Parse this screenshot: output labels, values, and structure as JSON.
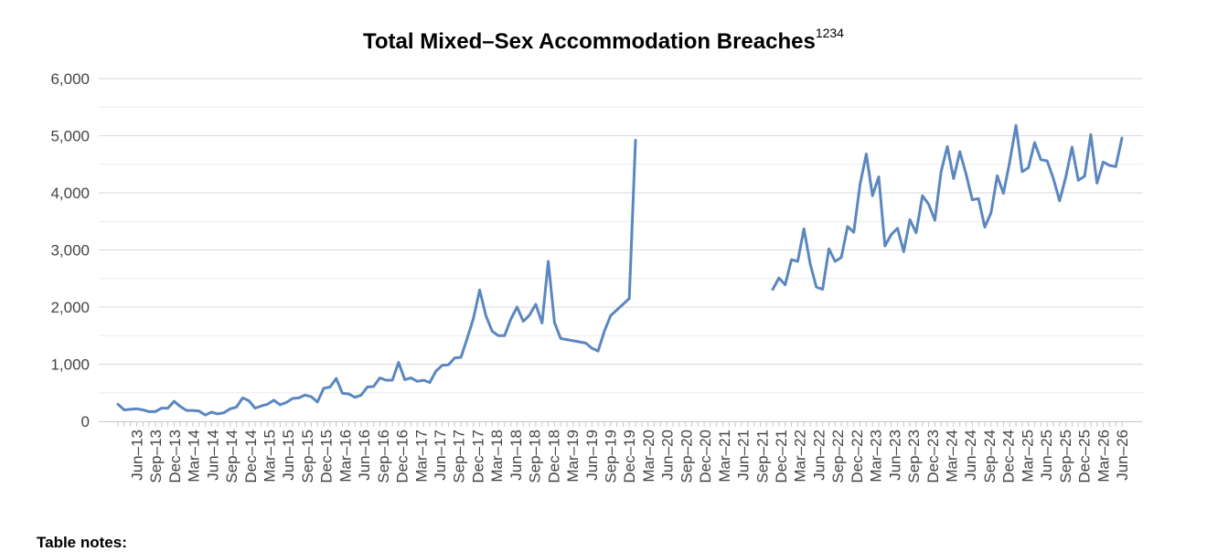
{
  "chart_data": {
    "type": "line",
    "title": "Total Mixed–Sex Accommodation Breaches",
    "title_superscript": "1234",
    "xlabel": "",
    "ylabel": "",
    "ylim": [
      0,
      6000
    ],
    "y_ticks": [
      "6,000",
      "5,000",
      "4,000",
      "3,000",
      "2,000",
      "1,000",
      "0"
    ],
    "x_tick_labels": [
      "Jun–13",
      "Sep–13",
      "Dec–13",
      "Mar–14",
      "Jun–14",
      "Sep–14",
      "Dec–14",
      "Mar–15",
      "Jun–15",
      "Sep–15",
      "Dec–15",
      "Mar–16",
      "Jun–16",
      "Sep–16",
      "Dec–16",
      "Mar–17",
      "Jun–17",
      "Sep–17",
      "Dec–17",
      "Mar–18",
      "Jun–18",
      "Sep–18",
      "Dec–18",
      "Mar–19",
      "Jun–19",
      "Sep–19",
      "Dec–19",
      "Mar–20",
      "Jun–20",
      "Sep–20",
      "Dec–20",
      "Mar–21",
      "Jun–21",
      "Sep–21",
      "Dec–21",
      "Mar–22",
      "Jun–22",
      "Sep–22",
      "Dec–22",
      "Mar–23",
      "Jun–23",
      "Sep–23",
      "Dec–23",
      "Mar–24",
      "Jun–24",
      "Sep–24",
      "Dec–24",
      "Mar–25",
      "Jun–25",
      "Sep–25",
      "Dec–25",
      "Mar–26",
      "Jun–26"
    ],
    "grid": true,
    "line_color": "#5b87c0",
    "series": [
      {
        "values": [
          300,
          200,
          210,
          220,
          200,
          170,
          170,
          230,
          230,
          350,
          260,
          190,
          190,
          180,
          110,
          160,
          130,
          150,
          220,
          250,
          410,
          360,
          230,
          270,
          300,
          370,
          290,
          330,
          400,
          410,
          460,
          430,
          340,
          580,
          600,
          750,
          490,
          480,
          420,
          460,
          600,
          610,
          760,
          720,
          720,
          1030,
          730,
          760,
          700,
          720,
          680,
          880,
          980,
          990,
          1110,
          1120,
          1450,
          1800,
          2300,
          1850,
          1580,
          1500,
          1500,
          1790,
          2000,
          1750,
          1860,
          2050,
          1720,
          2800,
          1730,
          1450,
          1430,
          1410,
          1390,
          1370,
          1280,
          1230,
          1580,
          1850,
          1950,
          2050,
          2150,
          4920,
          null,
          null,
          null,
          null,
          null,
          null,
          null,
          null,
          null,
          null,
          null,
          null,
          null,
          null,
          null,
          null,
          null,
          null,
          null,
          null,
          null,
          2310,
          2510,
          2390,
          2830,
          2800,
          3370,
          2760,
          2350,
          2310,
          3020,
          2800,
          2870,
          3410,
          3310,
          4150,
          4680,
          3950,
          4280,
          3070,
          3270,
          3380,
          2970,
          3530,
          3300,
          3950,
          3800,
          3520,
          4370,
          4810,
          4250,
          4720,
          4330,
          3880,
          3900,
          3400,
          3650,
          4300,
          3990,
          4540,
          5180,
          4370,
          4440,
          4880,
          4580,
          4560,
          4250,
          3860,
          4280,
          4800,
          4220,
          4290,
          5020,
          4170,
          4540,
          4480,
          4460,
          4960
        ]
      }
    ]
  },
  "footer": {
    "table_notes": "Table notes:"
  }
}
